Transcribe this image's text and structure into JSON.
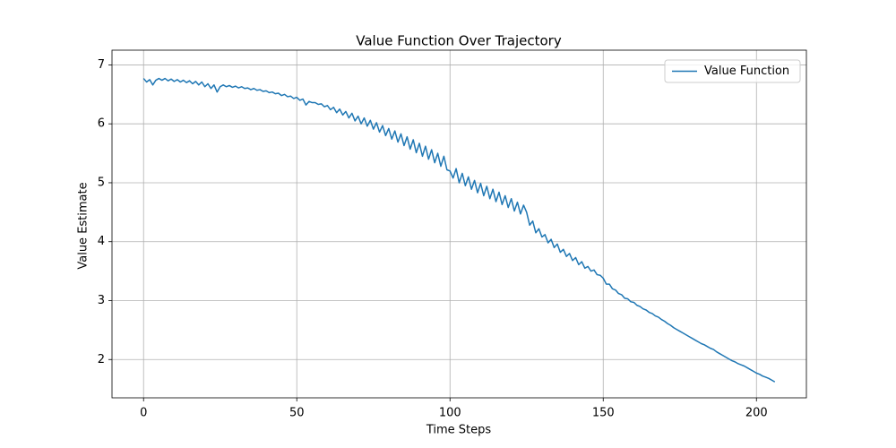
{
  "chart_data": {
    "type": "line",
    "title": "Value Function Over Trajectory",
    "x_label": "Time Steps",
    "y_label": "Value Estimate",
    "x": [
      0,
      1,
      2,
      3,
      4,
      5,
      6,
      7,
      8,
      9,
      10,
      11,
      12,
      13,
      14,
      15,
      16,
      17,
      18,
      19,
      20,
      21,
      22,
      23,
      24,
      25,
      26,
      27,
      28,
      29,
      30,
      31,
      32,
      33,
      34,
      35,
      36,
      37,
      38,
      39,
      40,
      41,
      42,
      43,
      44,
      45,
      46,
      47,
      48,
      49,
      50,
      51,
      52,
      53,
      54,
      55,
      56,
      57,
      58,
      59,
      60,
      61,
      62,
      63,
      64,
      65,
      66,
      67,
      68,
      69,
      70,
      71,
      72,
      73,
      74,
      75,
      76,
      77,
      78,
      79,
      80,
      81,
      82,
      83,
      84,
      85,
      86,
      87,
      88,
      89,
      90,
      91,
      92,
      93,
      94,
      95,
      96,
      97,
      98,
      99,
      100,
      101,
      102,
      103,
      104,
      105,
      106,
      107,
      108,
      109,
      110,
      111,
      112,
      113,
      114,
      115,
      116,
      117,
      118,
      119,
      120,
      121,
      122,
      123,
      124,
      125,
      126,
      127,
      128,
      129,
      130,
      131,
      132,
      133,
      134,
      135,
      136,
      137,
      138,
      139,
      140,
      141,
      142,
      143,
      144,
      145,
      146,
      147,
      148,
      149,
      150,
      151,
      152,
      153,
      154,
      155,
      156,
      157,
      158,
      159,
      160,
      161,
      162,
      163,
      164,
      165,
      166,
      167,
      168,
      169,
      170,
      171,
      172,
      173,
      174,
      175,
      176,
      177,
      178,
      179,
      180,
      181,
      182,
      183,
      184,
      185,
      186,
      187,
      188,
      189,
      190,
      191,
      192,
      193,
      194,
      195,
      196,
      197,
      198,
      199,
      200,
      201,
      202,
      203,
      204,
      205,
      206
    ],
    "series": [
      {
        "name": "Value Function",
        "color": "#1f77b4",
        "values": [
          6.77,
          6.71,
          6.75,
          6.66,
          6.74,
          6.77,
          6.74,
          6.77,
          6.73,
          6.76,
          6.72,
          6.75,
          6.71,
          6.74,
          6.7,
          6.73,
          6.68,
          6.72,
          6.66,
          6.71,
          6.63,
          6.68,
          6.6,
          6.66,
          6.54,
          6.63,
          6.66,
          6.63,
          6.65,
          6.62,
          6.64,
          6.61,
          6.63,
          6.6,
          6.61,
          6.58,
          6.6,
          6.57,
          6.58,
          6.55,
          6.56,
          6.53,
          6.54,
          6.51,
          6.52,
          6.48,
          6.5,
          6.46,
          6.47,
          6.43,
          6.45,
          6.4,
          6.42,
          6.32,
          6.38,
          6.36,
          6.36,
          6.33,
          6.34,
          6.29,
          6.31,
          6.24,
          6.28,
          6.19,
          6.25,
          6.15,
          6.21,
          6.1,
          6.18,
          6.05,
          6.13,
          6.0,
          6.1,
          5.96,
          6.06,
          5.91,
          6.02,
          5.86,
          5.97,
          5.8,
          5.92,
          5.74,
          5.88,
          5.69,
          5.83,
          5.63,
          5.78,
          5.57,
          5.73,
          5.51,
          5.67,
          5.45,
          5.62,
          5.4,
          5.56,
          5.34,
          5.5,
          5.28,
          5.45,
          5.22,
          5.2,
          5.08,
          5.24,
          5.0,
          5.16,
          4.95,
          5.1,
          4.89,
          5.04,
          4.83,
          4.99,
          4.78,
          4.94,
          4.73,
          4.89,
          4.68,
          4.84,
          4.63,
          4.78,
          4.58,
          4.73,
          4.52,
          4.67,
          4.47,
          4.62,
          4.5,
          4.28,
          4.35,
          4.15,
          4.22,
          4.08,
          4.12,
          3.98,
          4.04,
          3.9,
          3.96,
          3.82,
          3.87,
          3.75,
          3.8,
          3.68,
          3.73,
          3.61,
          3.66,
          3.55,
          3.58,
          3.5,
          3.52,
          3.44,
          3.43,
          3.38,
          3.28,
          3.28,
          3.2,
          3.18,
          3.12,
          3.1,
          3.04,
          3.03,
          2.98,
          2.97,
          2.92,
          2.9,
          2.86,
          2.84,
          2.8,
          2.78,
          2.74,
          2.72,
          2.68,
          2.65,
          2.61,
          2.58,
          2.54,
          2.51,
          2.48,
          2.45,
          2.42,
          2.39,
          2.36,
          2.33,
          2.3,
          2.27,
          2.25,
          2.22,
          2.19,
          2.17,
          2.13,
          2.1,
          2.07,
          2.04,
          2.01,
          1.98,
          1.96,
          1.93,
          1.91,
          1.89,
          1.86,
          1.83,
          1.8,
          1.77,
          1.75,
          1.72,
          1.7,
          1.68,
          1.65,
          1.62
        ]
      }
    ],
    "xlim": [
      -10.3,
      216.3
    ],
    "ylim": [
      1.35,
      7.25
    ],
    "xticks": [
      0,
      50,
      100,
      150,
      200
    ],
    "yticks": [
      2,
      3,
      4,
      5,
      6,
      7
    ],
    "grid": true,
    "legend": "upper right"
  }
}
